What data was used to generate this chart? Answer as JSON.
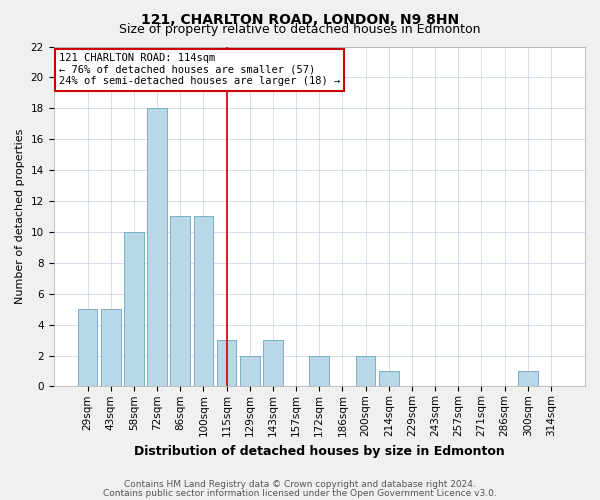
{
  "title": "121, CHARLTON ROAD, LONDON, N9 8HN",
  "subtitle": "Size of property relative to detached houses in Edmonton",
  "xlabel": "Distribution of detached houses by size in Edmonton",
  "ylabel": "Number of detached properties",
  "bar_labels": [
    "29sqm",
    "43sqm",
    "58sqm",
    "72sqm",
    "86sqm",
    "100sqm",
    "115sqm",
    "129sqm",
    "143sqm",
    "157sqm",
    "172sqm",
    "186sqm",
    "200sqm",
    "214sqm",
    "229sqm",
    "243sqm",
    "257sqm",
    "271sqm",
    "286sqm",
    "300sqm",
    "314sqm"
  ],
  "bar_values": [
    5,
    5,
    10,
    18,
    11,
    11,
    3,
    2,
    3,
    0,
    2,
    0,
    2,
    1,
    0,
    0,
    0,
    0,
    0,
    1,
    0
  ],
  "bar_color": "#b8d8e8",
  "bar_edgecolor": "#7baec8",
  "reference_line_color": "#cc0000",
  "annotation_title": "121 CHARLTON ROAD: 114sqm",
  "annotation_line1": "← 76% of detached houses are smaller (57)",
  "annotation_line2": "24% of semi-detached houses are larger (18) →",
  "annotation_box_color": "#ffffff",
  "annotation_box_edgecolor": "#cc0000",
  "ylim": [
    0,
    22
  ],
  "yticks": [
    0,
    2,
    4,
    6,
    8,
    10,
    12,
    14,
    16,
    18,
    20,
    22
  ],
  "footer1": "Contains HM Land Registry data © Crown copyright and database right 2024.",
  "footer2": "Contains public sector information licensed under the Open Government Licence v3.0.",
  "background_color": "#f0f0f0",
  "plot_background_color": "#ffffff",
  "grid_color": "#d0d8e8",
  "title_fontsize": 10,
  "subtitle_fontsize": 9,
  "xlabel_fontsize": 9,
  "ylabel_fontsize": 8,
  "tick_fontsize": 7.5,
  "footer_fontsize": 6.5,
  "annotation_fontsize": 7.5
}
